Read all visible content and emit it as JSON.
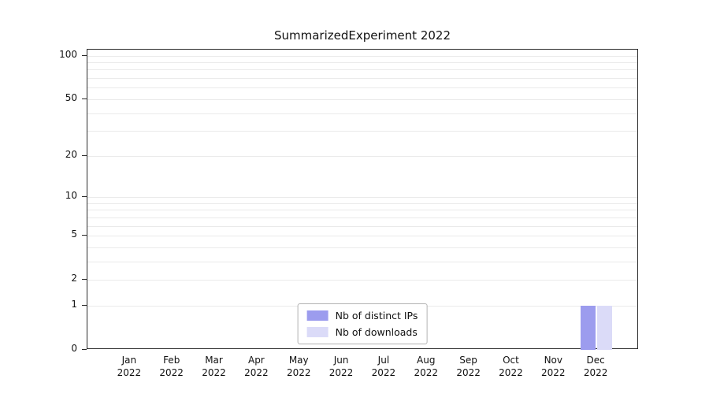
{
  "title": "SummarizedExperiment 2022",
  "chart_data": {
    "type": "bar",
    "title": "SummarizedExperiment 2022",
    "categories": [
      "Jan 2022",
      "Feb 2022",
      "Mar 2022",
      "Apr 2022",
      "May 2022",
      "Jun 2022",
      "Jul 2022",
      "Aug 2022",
      "Sep 2022",
      "Oct 2022",
      "Nov 2022",
      "Dec 2022"
    ],
    "series": [
      {
        "name": "Nb of distinct IPs",
        "color": "#9c9cee",
        "values": [
          0,
          0,
          0,
          0,
          0,
          0,
          0,
          0,
          0,
          0,
          0,
          1
        ]
      },
      {
        "name": "Nb of downloads",
        "color": "#dbdbf8",
        "values": [
          0,
          0,
          0,
          0,
          0,
          0,
          0,
          0,
          0,
          0,
          0,
          1
        ]
      }
    ],
    "y_ticks": [
      0,
      1,
      2,
      5,
      10,
      20,
      50,
      100
    ],
    "y_scale": "log1p",
    "ylim": [
      0,
      110
    ],
    "grid": true,
    "legend_position": "bottom-center"
  }
}
